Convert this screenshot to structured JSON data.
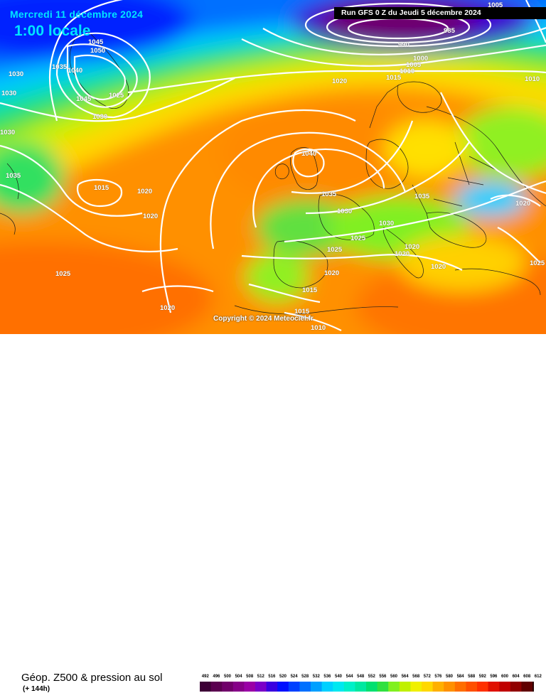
{
  "header": {
    "date": "Mercredi 11 décembre 2024",
    "time": "1:00 locale",
    "run": "Run GFS 0 Z du Jeudi 5 décembre 2024"
  },
  "copyright": "Copyright © 2024 Meteociel.fr",
  "legend": {
    "variable": "Géop. Z500 & pression au sol",
    "lead": "(+ 144h)",
    "ticks": [
      "492",
      "496",
      "500",
      "504",
      "508",
      "512",
      "516",
      "520",
      "524",
      "528",
      "532",
      "536",
      "540",
      "544",
      "548",
      "552",
      "556",
      "560",
      "564",
      "568",
      "572",
      "576",
      "580",
      "584",
      "588",
      "592",
      "596",
      "600",
      "604",
      "608",
      "612"
    ],
    "colors": [
      "#3d0036",
      "#5a0050",
      "#70006a",
      "#860088",
      "#9a00a6",
      "#7a00c8",
      "#3a00e0",
      "#0010ff",
      "#0040ff",
      "#0070ff",
      "#00a0ff",
      "#00d0ff",
      "#00e8f0",
      "#00f0c8",
      "#00e8a0",
      "#00e070",
      "#30e040",
      "#80f020",
      "#c0f000",
      "#f0f000",
      "#ffd800",
      "#ffb000",
      "#ff9000",
      "#ff6e00",
      "#ff5000",
      "#ff3000",
      "#e01000",
      "#c00000",
      "#900000",
      "#600000",
      "#2a0000"
    ]
  },
  "isobars": [
    {
      "id": "l1005a",
      "text": "1005"
    },
    {
      "id": "l985",
      "text": "985"
    },
    {
      "id": "l990",
      "text": "990"
    },
    {
      "id": "l1000",
      "text": "1000"
    },
    {
      "id": "l1005b",
      "text": "1005"
    },
    {
      "id": "l1010a",
      "text": "1010"
    },
    {
      "id": "l1015a",
      "text": "1015"
    },
    {
      "id": "l1020a",
      "text": "1020"
    },
    {
      "id": "l1045a",
      "text": "1045"
    },
    {
      "id": "l1050",
      "text": "1050"
    },
    {
      "id": "l1035a",
      "text": "1035"
    },
    {
      "id": "l1040a",
      "text": "1040"
    },
    {
      "id": "l1030a",
      "text": "1030"
    },
    {
      "id": "l1030b",
      "text": "1030"
    },
    {
      "id": "l1045b",
      "text": "1045"
    },
    {
      "id": "l1025a",
      "text": "1025"
    },
    {
      "id": "l1030c",
      "text": "1030"
    },
    {
      "id": "l1030d",
      "text": "1030"
    },
    {
      "id": "l1035b",
      "text": "1035"
    },
    {
      "id": "l1015b",
      "text": "1015"
    },
    {
      "id": "l1020b",
      "text": "1020"
    },
    {
      "id": "l1020c",
      "text": "1020"
    },
    {
      "id": "l1040b",
      "text": "1040"
    },
    {
      "id": "l1035c",
      "text": "1035"
    },
    {
      "id": "l1030e",
      "text": "1030"
    },
    {
      "id": "l1030f",
      "text": "1030"
    },
    {
      "id": "l1035d",
      "text": "1035"
    },
    {
      "id": "l1025b",
      "text": "1025"
    },
    {
      "id": "l1025c",
      "text": "1025"
    },
    {
      "id": "l1020d",
      "text": "1020"
    },
    {
      "id": "l1020e",
      "text": "1020"
    },
    {
      "id": "l1020f",
      "text": "1020"
    },
    {
      "id": "l1020g",
      "text": "1020"
    },
    {
      "id": "l1015c",
      "text": "1015"
    },
    {
      "id": "l1015d",
      "text": "1015"
    },
    {
      "id": "l1010b",
      "text": "1010"
    },
    {
      "id": "l1025d",
      "text": "1025"
    },
    {
      "id": "l1020h",
      "text": "1020"
    },
    {
      "id": "l1020i",
      "text": "1020"
    },
    {
      "id": "l1010c",
      "text": "1010"
    },
    {
      "id": "l1025e",
      "text": "1025"
    }
  ]
}
